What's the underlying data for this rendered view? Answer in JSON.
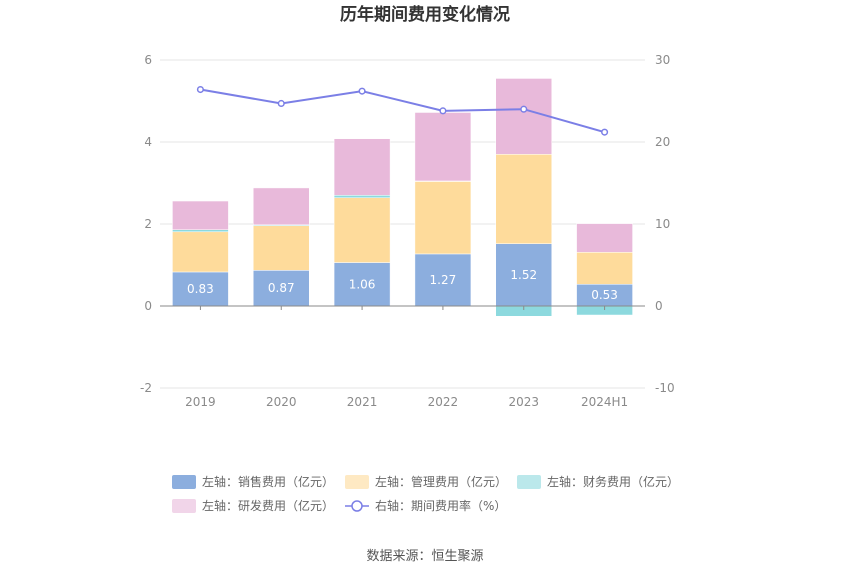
{
  "chart_data": {
    "type": "bar",
    "title": "历年期间费用变化情况",
    "source": "数据来源：恒生聚源",
    "categories": [
      "2019",
      "2020",
      "2021",
      "2022",
      "2023",
      "2024H1"
    ],
    "y_left": {
      "ylim": [
        -2,
        6
      ],
      "ticks": [
        "6",
        "4",
        "2",
        "0",
        "-2"
      ]
    },
    "y_right": {
      "ylim": [
        -10,
        30
      ],
      "ticks": [
        "30",
        "20",
        "10",
        "0",
        "-10"
      ]
    },
    "grid": true,
    "legend_position": "bottom",
    "series": [
      {
        "name": "左轴：销售费用（亿元）",
        "axis": "left",
        "kind": "bar",
        "color": "#8caede",
        "values": [
          0.83,
          0.87,
          1.06,
          1.27,
          1.52,
          0.53
        ],
        "labels": [
          "0.83",
          "0.87",
          "1.06",
          "1.27",
          "1.52",
          "0.53"
        ]
      },
      {
        "name": "左轴：管理费用（亿元）",
        "axis": "left",
        "kind": "bar",
        "color": "#fedb9b",
        "values": [
          0.98,
          1.09,
          1.58,
          1.77,
          2.18,
          0.78
        ]
      },
      {
        "name": "左轴：财务费用（亿元）",
        "axis": "left",
        "kind": "bar",
        "color": "#8dd9de",
        "values": [
          0.05,
          0.02,
          0.06,
          0.01,
          -0.25,
          -0.22
        ]
      },
      {
        "name": "左轴：研发费用（亿元）",
        "axis": "left",
        "kind": "bar",
        "color": "#e8b9da",
        "values": [
          0.7,
          0.9,
          1.38,
          1.67,
          1.85,
          0.7
        ]
      },
      {
        "name": "右轴：期间费用率（%）",
        "axis": "right",
        "kind": "line",
        "color": "#7b7fe6",
        "values": [
          26.4,
          24.7,
          26.2,
          23.8,
          24.0,
          21.2
        ]
      }
    ]
  }
}
